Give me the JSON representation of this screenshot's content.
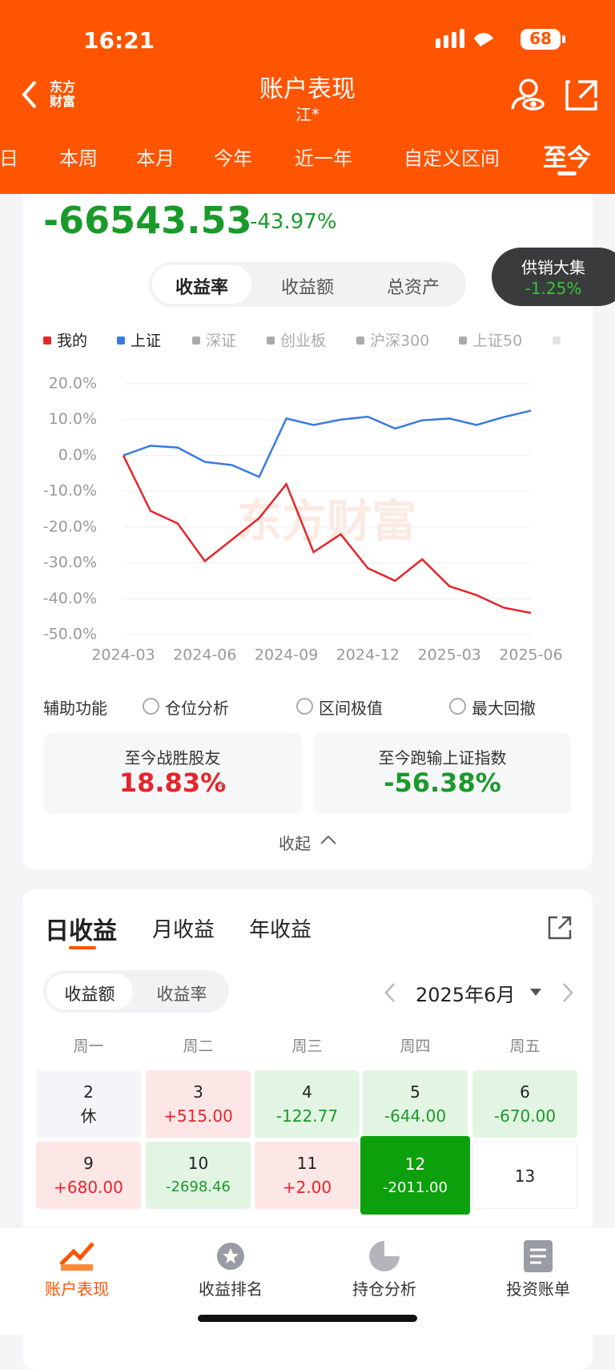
{
  "status_bar": {
    "time": "16:21",
    "battery": "68"
  },
  "header": {
    "logo_lines": [
      "东方",
      "财富"
    ],
    "title": "账户表现",
    "subtitle": "江*"
  },
  "period_tabs": [
    "日",
    "本周",
    "本月",
    "今年",
    "近一年",
    "自定义区间",
    "至今"
  ],
  "summary": {
    "amount": "-66543.53",
    "percent": "-43.97%"
  },
  "metric_toggle": [
    "收益率",
    "收益额",
    "总资产"
  ],
  "badge": {
    "name": "供销大集",
    "change": "-1.25%"
  },
  "chart_data": {
    "type": "line",
    "categories": [
      "2024-03",
      null,
      null,
      "2024-06",
      null,
      null,
      "2024-09",
      null,
      null,
      "2024-12",
      null,
      null,
      "2025-03",
      null,
      null,
      "2025-06"
    ],
    "series": [
      {
        "name": "我的",
        "color": "#e5252a",
        "values": [
          0,
          -15.5,
          -19,
          -29.5,
          -23.5,
          -17.5,
          -8,
          -27,
          -22,
          -31.5,
          -35,
          -29,
          -36.5,
          -39,
          -42.5,
          -43.97
        ]
      },
      {
        "name": "上证",
        "color": "#3a7be0",
        "values": [
          0,
          2.7,
          2.2,
          -1.8,
          -2.7,
          -6,
          10.3,
          8.5,
          10,
          10.8,
          7.5,
          9.8,
          10.3,
          8.5,
          10.7,
          12.5
        ]
      }
    ],
    "other_legend": [
      "深证",
      "创业板",
      "沪深300",
      "上证50"
    ],
    "ylim": [
      -50,
      20
    ],
    "yticks": [
      {
        "value": 20,
        "label": "20.0%"
      },
      {
        "value": 10,
        "label": "10.0%"
      },
      {
        "value": 0,
        "label": "0.0%"
      },
      {
        "value": -10,
        "label": "-10.0%"
      },
      {
        "value": -20,
        "label": "-20.0%"
      },
      {
        "value": -30,
        "label": "-30.0%"
      },
      {
        "value": -40,
        "label": "-40.0%"
      },
      {
        "value": -50,
        "label": "-50.0%"
      }
    ],
    "grid": true,
    "watermark": "东方财富"
  },
  "aux": {
    "label": "辅助功能",
    "options": [
      "仓位分析",
      "区间极值",
      "最大回撤"
    ]
  },
  "stats": [
    {
      "label": "至今战胜股友",
      "value": "18.83%"
    },
    {
      "label": "至今跑输上证指数",
      "value": "-56.38%"
    }
  ],
  "collapse": "收起",
  "earnings_tabs": [
    "日收益",
    "月收益",
    "年收益"
  ],
  "earnings_toggle": [
    "收益额",
    "收益率"
  ],
  "month": "2025年6月",
  "weekdays": [
    "周一",
    "周二",
    "周三",
    "周四",
    "周五"
  ],
  "calendar": [
    [
      {
        "day": 2,
        "value": "休"
      },
      {
        "day": 3,
        "value": "+515.00"
      },
      {
        "day": 4,
        "value": "-122.77"
      },
      {
        "day": 5,
        "value": "-644.00"
      },
      {
        "day": 6,
        "value": "-670.00"
      }
    ],
    [
      {
        "day": 9,
        "value": "+680.00"
      },
      {
        "day": 10,
        "value": "-2698.46"
      },
      {
        "day": 11,
        "value": "+2.00"
      },
      {
        "day": 12,
        "value": "-2011.00"
      },
      {
        "day": 13
      }
    ]
  ],
  "nav": [
    "账户表现",
    "收益排名",
    "持仓分析",
    "投资账单"
  ]
}
